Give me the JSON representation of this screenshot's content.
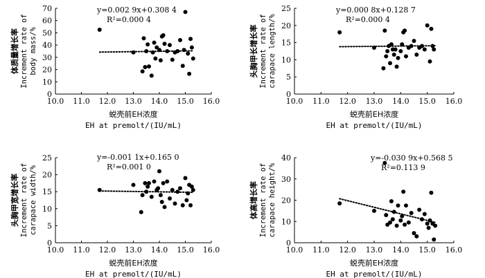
{
  "chart_data": [
    {
      "type": "scatter",
      "panel": "top-left",
      "equation": "y=0.002 9x+0.308 4",
      "r2": "R²=0.000 4",
      "ylabel_cn": "体质量增长率",
      "ylabel_en_1": "Increment rate of",
      "ylabel_en_2": "body mass/%",
      "xlabel_cn": "蜕壳前EH浓度",
      "xlabel_en": "EH at premolt/(IU/mL)",
      "xlim": [
        10.0,
        16.0
      ],
      "ylim": [
        0,
        70
      ],
      "xticks": [
        "10.0",
        "11.0",
        "12.0",
        "13.0",
        "14.0",
        "15.0",
        "16.0"
      ],
      "yticks": [
        "0",
        "10",
        "20",
        "30",
        "40",
        "50",
        "60",
        "70"
      ],
      "trend": {
        "slope": 0.0029,
        "intercept": 0.3084,
        "scale": 100
      },
      "x": [
        11.7,
        13.0,
        13.35,
        13.4,
        13.45,
        13.5,
        13.55,
        13.6,
        13.7,
        13.75,
        13.8,
        13.85,
        13.9,
        14.0,
        14.05,
        14.1,
        14.15,
        14.2,
        14.3,
        14.4,
        14.5,
        14.6,
        14.7,
        14.8,
        14.9,
        14.95,
        15.0,
        15.1,
        15.15,
        15.2,
        15.25,
        15.3
      ],
      "y": [
        52.5,
        34.0,
        18.5,
        45.5,
        22.0,
        35.0,
        40.5,
        22.5,
        15.0,
        34.0,
        42.0,
        29.0,
        38.0,
        36.0,
        27.5,
        47.0,
        48.0,
        41.0,
        35.0,
        40.0,
        28.0,
        34.0,
        35.0,
        44.0,
        23.0,
        36.0,
        67.0,
        33.0,
        16.5,
        45.0,
        38.0,
        29.0
      ]
    },
    {
      "type": "scatter",
      "panel": "top-right",
      "equation": "y=0.000 8x+0.128 7",
      "r2": "R²=0.000 4",
      "ylabel_cn": "头胸甲长增长率",
      "ylabel_en_1": "Increment rate of",
      "ylabel_en_2": "carapace length/%",
      "xlabel_cn": "蜕壳前EH浓度",
      "xlabel_en": "EH at premolt/(IU/mL)",
      "xlim": [
        10.0,
        16.0
      ],
      "ylim": [
        0,
        25
      ],
      "xticks": [
        "10.0",
        "11.0",
        "12.0",
        "13.0",
        "14.0",
        "15.0",
        "16.0"
      ],
      "yticks": [
        "0",
        "5",
        "10",
        "15",
        "20",
        "25"
      ],
      "trend": {
        "slope": 0.0008,
        "intercept": 0.1287,
        "scale": 100
      },
      "x": [
        11.7,
        13.0,
        13.35,
        13.4,
        13.45,
        13.5,
        13.55,
        13.6,
        13.65,
        13.7,
        13.75,
        13.8,
        13.85,
        13.9,
        14.0,
        14.05,
        14.1,
        14.15,
        14.2,
        14.3,
        14.4,
        14.5,
        14.6,
        14.7,
        14.8,
        14.9,
        15.0,
        15.1,
        15.15,
        15.2,
        15.25
      ],
      "y": [
        18.0,
        13.5,
        7.5,
        18.5,
        11.0,
        12.5,
        14.0,
        9.0,
        14.5,
        13.0,
        11.5,
        13.0,
        8.0,
        10.5,
        12.5,
        14.5,
        18.0,
        18.5,
        11.0,
        13.5,
        14.0,
        15.5,
        11.5,
        13.5,
        14.0,
        13.0,
        20.0,
        9.5,
        19.0,
        14.0,
        13.0
      ]
    },
    {
      "type": "scatter",
      "panel": "bottom-left",
      "equation": "y=-0.001 1x+0.165 0",
      "r2": "R²=0.001 0",
      "ylabel_cn": "头胸甲宽增长率",
      "ylabel_en_1": "Increment rate of",
      "ylabel_en_2": "carapace width/%",
      "xlabel_cn": "蜕壳前EH浓度",
      "xlabel_en": "EH at premolt/(IU/mL)",
      "xlim": [
        10.0,
        16.0
      ],
      "ylim": [
        0,
        25
      ],
      "xticks": [
        "10.0",
        "11.0",
        "12.0",
        "13.0",
        "14.0",
        "15.0",
        "16.0"
      ],
      "yticks": [
        "0",
        "5",
        "10",
        "15",
        "20",
        "25"
      ],
      "trend": {
        "slope": -0.0011,
        "intercept": 0.165,
        "scale": 100
      },
      "x": [
        11.7,
        13.0,
        13.3,
        13.35,
        13.45,
        13.5,
        13.55,
        13.6,
        13.7,
        13.8,
        13.9,
        13.95,
        14.0,
        14.05,
        14.1,
        14.15,
        14.2,
        14.3,
        14.4,
        14.5,
        14.6,
        14.7,
        14.8,
        14.9,
        15.0,
        15.05,
        15.1,
        15.15,
        15.2,
        15.25,
        15.3
      ],
      "y": [
        15.5,
        17.0,
        9.0,
        14.0,
        17.5,
        15.0,
        16.5,
        17.5,
        13.5,
        18.0,
        15.5,
        16.0,
        21.0,
        14.0,
        12.0,
        17.5,
        10.5,
        18.0,
        13.0,
        15.5,
        11.5,
        15.0,
        16.0,
        11.0,
        19.0,
        12.5,
        14.5,
        17.0,
        11.0,
        16.5,
        15.5
      ]
    },
    {
      "type": "scatter",
      "panel": "bottom-right",
      "equation": "y=-0.030 9x+0.568 5",
      "r2": "R²=0.113 9",
      "ylabel_cn": "体高增长率",
      "ylabel_en_1": "Increment rate of",
      "ylabel_en_2": "carapace height/%",
      "xlabel_cn": "蜕壳前EH浓度",
      "xlabel_en": "EH at premolt/(IU/mL)",
      "xlim": [
        10.0,
        16.0
      ],
      "ylim": [
        0,
        40
      ],
      "xticks": [
        "10.0",
        "11.0",
        "12.0",
        "13.0",
        "14.0",
        "15.0",
        "16.0"
      ],
      "yticks": [
        "0",
        "10",
        "20",
        "30",
        "40"
      ],
      "trend": {
        "slope": -0.0309,
        "intercept": 0.5685,
        "scale": 100
      },
      "x": [
        11.7,
        13.0,
        13.4,
        13.45,
        13.5,
        13.6,
        13.65,
        13.7,
        13.75,
        13.85,
        13.9,
        14.0,
        14.05,
        14.1,
        14.15,
        14.2,
        14.3,
        14.4,
        14.5,
        14.6,
        14.7,
        14.8,
        14.9,
        15.0,
        15.05,
        15.1,
        15.15,
        15.2,
        15.25,
        15.3
      ],
      "y": [
        18.5,
        15.0,
        37.5,
        13.0,
        8.5,
        9.5,
        19.5,
        11.0,
        14.5,
        8.0,
        17.5,
        10.5,
        12.5,
        24.0,
        8.5,
        17.5,
        9.5,
        14.0,
        4.5,
        3.0,
        15.5,
        11.0,
        13.5,
        9.0,
        7.0,
        10.5,
        23.5,
        9.0,
        1.5,
        8.0
      ]
    }
  ]
}
